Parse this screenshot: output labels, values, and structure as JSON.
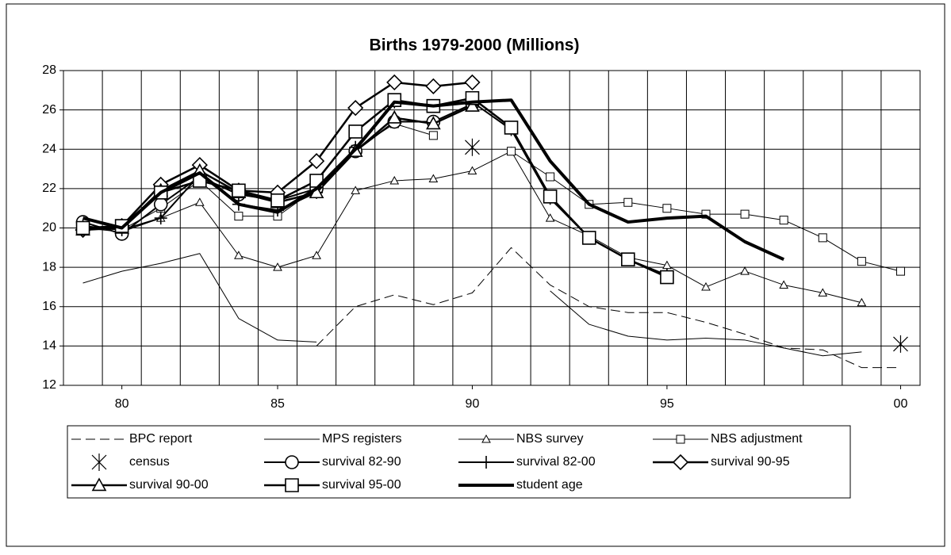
{
  "chart_data": {
    "type": "line",
    "title": "Births 1979-2000 (Millions)",
    "categories": [
      null,
      "80",
      null,
      null,
      null,
      "85",
      null,
      null,
      null,
      null,
      "90",
      null,
      null,
      null,
      null,
      "95",
      null,
      null,
      null,
      null,
      null,
      "00"
    ],
    "ylim": [
      12,
      28
    ],
    "yticks": [
      12,
      14,
      16,
      18,
      20,
      22,
      24,
      26,
      28
    ],
    "grid": true,
    "legend": "bottom",
    "series": [
      {
        "name": "BPC report",
        "color": "#000000",
        "line_width": 1,
        "dash": "dashed",
        "marker": "none",
        "values": [
          null,
          null,
          null,
          null,
          null,
          null,
          14.0,
          16.0,
          16.6,
          16.1,
          16.7,
          19.0,
          17.1,
          16.0,
          15.7,
          15.7,
          15.2,
          14.6,
          13.9,
          13.8,
          12.9,
          12.9
        ]
      },
      {
        "name": "MPS registers",
        "color": "#000000",
        "line_width": 1,
        "dash": "solid",
        "marker": "none",
        "values": [
          17.2,
          17.8,
          18.2,
          18.7,
          15.4,
          14.3,
          14.2,
          null,
          null,
          null,
          null,
          null,
          16.8,
          15.1,
          14.5,
          14.3,
          14.4,
          14.3,
          13.9,
          13.5,
          13.7,
          null
        ]
      },
      {
        "name": "NBS survey",
        "color": "#000000",
        "line_width": 1,
        "dash": "solid",
        "marker": "triangle",
        "values": [
          20.0,
          19.8,
          20.5,
          21.3,
          18.6,
          18.0,
          18.6,
          21.9,
          22.4,
          22.5,
          22.9,
          23.9,
          20.5,
          19.6,
          18.5,
          18.1,
          17.0,
          17.8,
          17.1,
          16.7,
          16.2,
          null
        ]
      },
      {
        "name": "NBS adjustment",
        "color": "#000000",
        "line_width": 1,
        "dash": "solid",
        "marker": "square",
        "values": [
          20.0,
          19.9,
          21.0,
          22.4,
          20.6,
          20.6,
          22.0,
          24.0,
          25.3,
          24.7,
          null,
          23.9,
          22.6,
          21.2,
          21.3,
          21.0,
          20.7,
          20.7,
          20.4,
          19.5,
          18.3,
          17.8
        ]
      },
      {
        "name": "census",
        "color": "#000000",
        "line_width": 0,
        "dash": "solid",
        "marker": "star",
        "values": [
          null,
          null,
          null,
          null,
          null,
          null,
          null,
          null,
          null,
          null,
          24.1,
          null,
          null,
          null,
          null,
          null,
          null,
          null,
          null,
          null,
          null,
          14.1
        ]
      },
      {
        "name": "survival 82-90",
        "color": "#000000",
        "line_width": 2,
        "dash": "solid",
        "marker": "circle",
        "values": [
          20.3,
          19.7,
          21.2,
          22.6,
          21.7,
          21.4,
          22.0,
          23.9,
          25.4,
          25.4,
          26.3,
          null,
          null,
          null,
          null,
          null,
          null,
          null,
          null,
          null,
          null,
          null
        ]
      },
      {
        "name": "survival 82-00",
        "color": "#000000",
        "line_width": 2,
        "dash": "solid",
        "marker": "plus",
        "values": [
          20.1,
          19.9,
          20.5,
          22.7,
          21.2,
          20.9,
          21.8,
          24.1,
          26.4,
          26.2,
          26.4,
          25.0,
          21.5,
          19.5,
          18.4,
          17.6,
          null,
          null,
          null,
          null,
          null,
          null
        ]
      },
      {
        "name": "survival 90-95",
        "color": "#000000",
        "line_width": 2.5,
        "dash": "solid",
        "marker": "diamond",
        "values": [
          19.9,
          20.1,
          22.2,
          23.2,
          21.9,
          21.8,
          23.4,
          26.1,
          27.4,
          27.2,
          27.4,
          null,
          null,
          null,
          null,
          null,
          null,
          null,
          null,
          null,
          null,
          null
        ]
      },
      {
        "name": "survival 90-00",
        "color": "#000000",
        "line_width": 2.5,
        "dash": "solid",
        "marker": "triangle",
        "values": [
          19.9,
          20.0,
          21.9,
          22.9,
          21.8,
          21.3,
          21.8,
          23.9,
          25.6,
          25.3,
          26.2,
          null,
          null,
          null,
          null,
          null,
          null,
          null,
          null,
          null,
          null,
          null
        ]
      },
      {
        "name": "survival 95-00",
        "color": "#000000",
        "line_width": 2.5,
        "dash": "solid",
        "marker": "square",
        "values": [
          20.0,
          20.1,
          21.8,
          22.4,
          21.9,
          21.4,
          22.4,
          24.9,
          26.5,
          26.2,
          26.6,
          25.1,
          21.6,
          19.5,
          18.4,
          17.5,
          null,
          null,
          null,
          null,
          null,
          null
        ]
      },
      {
        "name": "student age",
        "color": "#000000",
        "line_width": 4,
        "dash": "solid",
        "marker": "none",
        "values": [
          20.5,
          20.0,
          21.8,
          22.8,
          21.2,
          20.8,
          22.0,
          24.0,
          26.4,
          26.2,
          26.4,
          26.5,
          23.4,
          21.2,
          20.3,
          20.5,
          20.6,
          19.3,
          18.4,
          null,
          null,
          null
        ]
      }
    ]
  }
}
